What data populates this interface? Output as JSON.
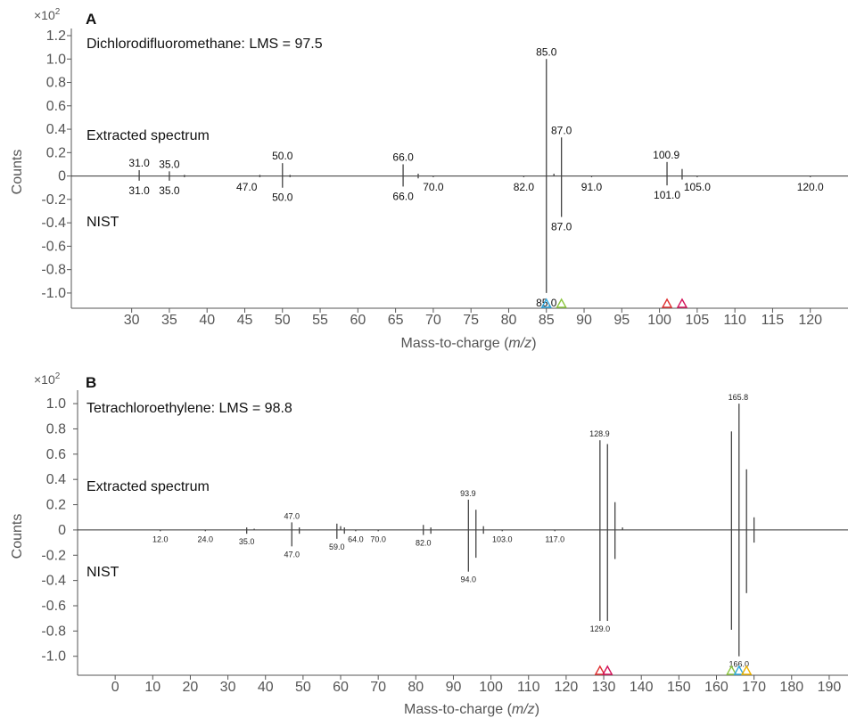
{
  "chart_data": [
    {
      "type": "bar",
      "panel_label": "A",
      "compound_label": "Dichlorodifluoromethane: LMS = 97.5",
      "y_multiplier_base": "×10",
      "y_multiplier_exp": "2",
      "ylabel": "Counts",
      "xlabel_prefix": "Mass-to-charge (",
      "xlabel_italic": "m/z",
      "xlabel_suffix": ")",
      "top_annotation": "Extracted spectrum",
      "bottom_annotation": "NIST",
      "xlim": [
        22,
        125
      ],
      "ylim": [
        -1.13,
        1.2
      ],
      "grid": false,
      "x_ticks": [
        30,
        35,
        40,
        45,
        50,
        55,
        60,
        65,
        70,
        75,
        80,
        85,
        90,
        95,
        100,
        105,
        110,
        115,
        120
      ],
      "y_ticks": [
        "1.2",
        "1.0",
        "0.8",
        "0.6",
        "0.4",
        "0.2",
        "0",
        "-0.2",
        "-0.4",
        "-0.6",
        "-0.8",
        "-1.0"
      ],
      "series": [
        {
          "name": "Extracted spectrum",
          "points": [
            {
              "x": 31.0,
              "y": 0.05
            },
            {
              "x": 35.0,
              "y": 0.04
            },
            {
              "x": 37.0,
              "y": 0.01
            },
            {
              "x": 47.0,
              "y": 0.01
            },
            {
              "x": 50.0,
              "y": 0.11
            },
            {
              "x": 51.0,
              "y": 0.01
            },
            {
              "x": 66.0,
              "y": 0.1
            },
            {
              "x": 68.0,
              "y": 0.02
            },
            {
              "x": 85.0,
              "y": 1.0
            },
            {
              "x": 86.0,
              "y": 0.02
            },
            {
              "x": 87.0,
              "y": 0.33
            },
            {
              "x": 101.0,
              "y": 0.12
            },
            {
              "x": 103.0,
              "y": 0.06
            }
          ]
        },
        {
          "name": "NIST",
          "points": [
            {
              "x": 31.0,
              "y": -0.04
            },
            {
              "x": 35.0,
              "y": -0.04
            },
            {
              "x": 37.0,
              "y": -0.01
            },
            {
              "x": 47.0,
              "y": -0.01
            },
            {
              "x": 50.0,
              "y": -0.1
            },
            {
              "x": 51.0,
              "y": -0.01
            },
            {
              "x": 66.0,
              "y": -0.09
            },
            {
              "x": 68.0,
              "y": -0.02
            },
            {
              "x": 70.0,
              "y": -0.01
            },
            {
              "x": 82.0,
              "y": -0.01
            },
            {
              "x": 85.0,
              "y": -1.0
            },
            {
              "x": 87.0,
              "y": -0.35
            },
            {
              "x": 91.0,
              "y": -0.01
            },
            {
              "x": 101.0,
              "y": -0.08
            },
            {
              "x": 103.0,
              "y": -0.03
            },
            {
              "x": 105.0,
              "y": -0.01
            },
            {
              "x": 120.0,
              "y": -0.01
            }
          ]
        }
      ],
      "peak_labels_top": [
        {
          "x": 31.0,
          "y": 0.05,
          "text": "31.0"
        },
        {
          "x": 35.0,
          "y": 0.04,
          "text": "35.0"
        },
        {
          "x": 50.0,
          "y": 0.11,
          "text": "50.0"
        },
        {
          "x": 66.0,
          "y": 0.1,
          "text": "66.0"
        },
        {
          "x": 85.0,
          "y": 1.0,
          "text": "85.0"
        },
        {
          "x": 87.0,
          "y": 0.33,
          "text": "87.0"
        },
        {
          "x": 100.9,
          "y": 0.12,
          "text": "100.9"
        }
      ],
      "peak_labels_bottom": [
        {
          "x": 31.0,
          "y": -0.04,
          "text": "31.0"
        },
        {
          "x": 35.0,
          "y": -0.04,
          "text": "35.0"
        },
        {
          "x": 47.0,
          "y": -0.01,
          "text": "47.0",
          "side": "left"
        },
        {
          "x": 50.0,
          "y": -0.1,
          "text": "50.0"
        },
        {
          "x": 66.0,
          "y": -0.09,
          "text": "66.0"
        },
        {
          "x": 70.0,
          "y": -0.01,
          "text": "70.0"
        },
        {
          "x": 82.0,
          "y": -0.01,
          "text": "82.0"
        },
        {
          "x": 87.0,
          "y": -0.35,
          "text": "87.0"
        },
        {
          "x": 91.0,
          "y": -0.01,
          "text": "91.0"
        },
        {
          "x": 101.0,
          "y": -0.08,
          "text": "101.0"
        },
        {
          "x": 105.0,
          "y": -0.01,
          "text": "105.0"
        },
        {
          "x": 120.0,
          "y": -0.01,
          "text": "120.0"
        },
        {
          "x": 85.0,
          "y": -1.0,
          "text": "85.0"
        }
      ],
      "markers": [
        {
          "x": 85.0,
          "color": "#2fa8e0"
        },
        {
          "x": 87.0,
          "color": "#8cc63f"
        },
        {
          "x": 101.0,
          "color": "#e03030"
        },
        {
          "x": 103.0,
          "color": "#d4145a"
        }
      ]
    },
    {
      "type": "bar",
      "panel_label": "B",
      "compound_label": "Tetrachloroethylene: LMS = 98.8",
      "y_multiplier_base": "×10",
      "y_multiplier_exp": "2",
      "ylabel": "Counts",
      "xlabel_prefix": "Mass-to-charge (",
      "xlabel_italic": "m/z",
      "xlabel_suffix": ")",
      "top_annotation": "Extracted spectrum",
      "bottom_annotation": "NIST",
      "xlim": [
        -10,
        195
      ],
      "ylim": [
        -1.15,
        1.05
      ],
      "grid": false,
      "x_ticks": [
        0,
        10,
        20,
        30,
        40,
        50,
        60,
        70,
        80,
        90,
        100,
        110,
        120,
        130,
        140,
        150,
        160,
        170,
        180,
        190
      ],
      "y_ticks": [
        "1.0",
        "0.8",
        "0.6",
        "0.4",
        "0.2",
        "0",
        "-0.2",
        "-0.4",
        "-0.6",
        "-0.8",
        "-1.0"
      ],
      "series": [
        {
          "name": "Extracted spectrum",
          "points": [
            {
              "x": 35.0,
              "y": 0.02
            },
            {
              "x": 37.0,
              "y": 0.01
            },
            {
              "x": 47.0,
              "y": 0.06
            },
            {
              "x": 49.0,
              "y": 0.02
            },
            {
              "x": 59.0,
              "y": 0.05
            },
            {
              "x": 60.0,
              "y": 0.03
            },
            {
              "x": 61.0,
              "y": 0.02
            },
            {
              "x": 82.0,
              "y": 0.04
            },
            {
              "x": 84.0,
              "y": 0.02
            },
            {
              "x": 94.0,
              "y": 0.24
            },
            {
              "x": 96.0,
              "y": 0.16
            },
            {
              "x": 98.0,
              "y": 0.03
            },
            {
              "x": 129.0,
              "y": 0.71
            },
            {
              "x": 131.0,
              "y": 0.68
            },
            {
              "x": 133.0,
              "y": 0.22
            },
            {
              "x": 135.0,
              "y": 0.02
            },
            {
              "x": 164.0,
              "y": 0.78
            },
            {
              "x": 166.0,
              "y": 1.0
            },
            {
              "x": 168.0,
              "y": 0.48
            },
            {
              "x": 170.0,
              "y": 0.1
            }
          ]
        },
        {
          "name": "NIST",
          "points": [
            {
              "x": 12.0,
              "y": -0.01
            },
            {
              "x": 24.0,
              "y": -0.01
            },
            {
              "x": 35.0,
              "y": -0.03
            },
            {
              "x": 47.0,
              "y": -0.13
            },
            {
              "x": 49.0,
              "y": -0.03
            },
            {
              "x": 59.0,
              "y": -0.07
            },
            {
              "x": 61.0,
              "y": -0.03
            },
            {
              "x": 64.0,
              "y": -0.01
            },
            {
              "x": 70.0,
              "y": -0.01
            },
            {
              "x": 82.0,
              "y": -0.04
            },
            {
              "x": 84.0,
              "y": -0.03
            },
            {
              "x": 94.0,
              "y": -0.33
            },
            {
              "x": 96.0,
              "y": -0.22
            },
            {
              "x": 98.0,
              "y": -0.03
            },
            {
              "x": 103.0,
              "y": -0.01
            },
            {
              "x": 117.0,
              "y": -0.01
            },
            {
              "x": 129.0,
              "y": -0.72
            },
            {
              "x": 131.0,
              "y": -0.72
            },
            {
              "x": 133.0,
              "y": -0.23
            },
            {
              "x": 164.0,
              "y": -0.79
            },
            {
              "x": 166.0,
              "y": -1.0
            },
            {
              "x": 168.0,
              "y": -0.5
            },
            {
              "x": 170.0,
              "y": -0.1
            }
          ]
        }
      ],
      "peak_labels_top": [
        {
          "x": 47.0,
          "y": 0.06,
          "text": "47.0"
        },
        {
          "x": 93.9,
          "y": 0.24,
          "text": "93.9"
        },
        {
          "x": 128.9,
          "y": 0.71,
          "text": "128.9"
        },
        {
          "x": 165.8,
          "y": 1.0,
          "text": "165.8"
        }
      ],
      "peak_labels_bottom": [
        {
          "x": 12.0,
          "y": -0.01,
          "text": "12.0"
        },
        {
          "x": 24.0,
          "y": -0.01,
          "text": "24.0"
        },
        {
          "x": 35.0,
          "y": -0.03,
          "text": "35.0"
        },
        {
          "x": 47.0,
          "y": -0.13,
          "text": "47.0"
        },
        {
          "x": 59.0,
          "y": -0.07,
          "text": "59.0"
        },
        {
          "x": 64.0,
          "y": -0.01,
          "text": "64.0"
        },
        {
          "x": 70.0,
          "y": -0.01,
          "text": "70.0"
        },
        {
          "x": 82.0,
          "y": -0.04,
          "text": "82.0"
        },
        {
          "x": 94.0,
          "y": -0.33,
          "text": "94.0"
        },
        {
          "x": 103.0,
          "y": -0.01,
          "text": "103.0"
        },
        {
          "x": 117.0,
          "y": -0.01,
          "text": "117.0"
        },
        {
          "x": 129.0,
          "y": -0.72,
          "text": "129.0"
        },
        {
          "x": 166.0,
          "y": -1.0,
          "text": "166.0"
        }
      ],
      "markers": [
        {
          "x": 129.0,
          "color": "#e03030"
        },
        {
          "x": 131.0,
          "color": "#d4145a"
        },
        {
          "x": 164.0,
          "color": "#8cc63f"
        },
        {
          "x": 166.0,
          "color": "#2fa8e0"
        },
        {
          "x": 168.0,
          "color": "#f0b400"
        }
      ]
    }
  ]
}
